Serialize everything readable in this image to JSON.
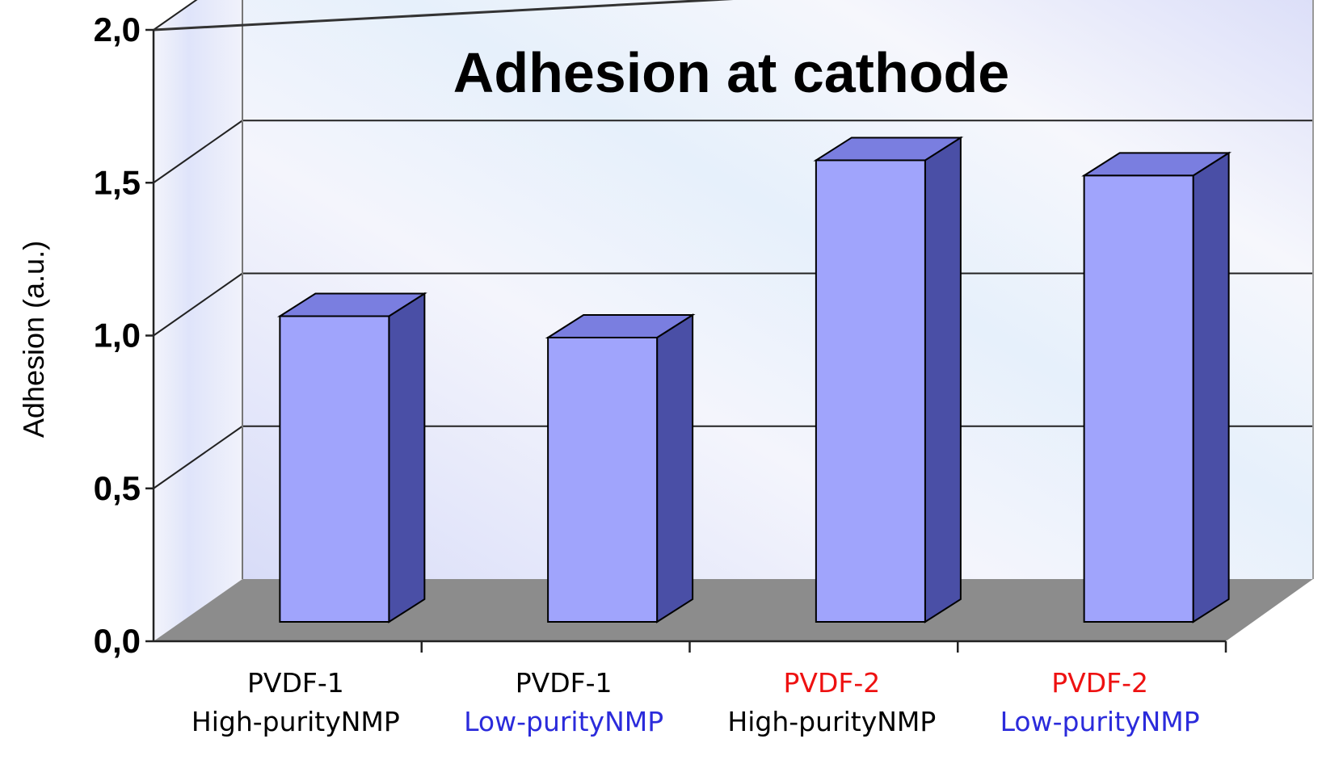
{
  "chart_data": {
    "type": "bar",
    "title": "Adhesion at cathode",
    "xlabel": "",
    "ylabel": "Adhesion (a.u.)",
    "ylim": [
      0,
      2
    ],
    "yticks": [
      "0,0",
      "0,5",
      "1,0",
      "1,5",
      "2,0"
    ],
    "categories": [
      {
        "line1": "PVDF-1",
        "line2": "High-purityNMP",
        "line1_color": "#000000",
        "line2_color": "#000000"
      },
      {
        "line1": "PVDF-1",
        "line2": "Low-purityNMP",
        "line1_color": "#000000",
        "line2_color": "#2b2bdb"
      },
      {
        "line1": "PVDF-2",
        "line2": "High-purityNMP",
        "line1_color": "#ee1111",
        "line2_color": "#000000"
      },
      {
        "line1": "PVDF-2",
        "line2": "Low-purityNMP",
        "line1_color": "#ee1111",
        "line2_color": "#2b2bdb"
      }
    ],
    "values": [
      1.0,
      0.93,
      1.51,
      1.46
    ],
    "grid": true,
    "style": "3d",
    "colors": {
      "bar_front": "#a0a4fc",
      "bar_top": "#7a7ee0",
      "bar_side": "#4a4fa6",
      "floor": "#8c8c8c",
      "back_wall": "#eef0fb"
    }
  }
}
